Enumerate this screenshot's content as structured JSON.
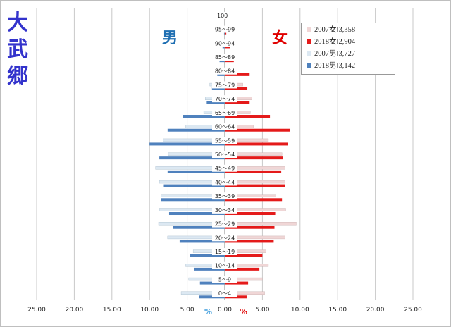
{
  "title_chars": [
    "大",
    "武",
    "郷"
  ],
  "male_label": "男",
  "female_label": "女",
  "percent_symbol": "%",
  "colors": {
    "female_2007": "#f0d6d6",
    "female_2018": "#e41a1a",
    "male_2007": "#dce8f2",
    "male_2018": "#4f81bd",
    "title": "#3333cc",
    "male_text": "#1f6fb2",
    "female_text": "#e00000"
  },
  "legend": [
    {
      "label": "2007女‖3,358",
      "color": "#f0d6d6"
    },
    {
      "label": "2018女‖2,904",
      "color": "#e41a1a"
    },
    {
      "label": "2007男‖3,727",
      "color": "#dce8f2"
    },
    {
      "label": "2018男‖3,142",
      "color": "#4f81bd"
    }
  ],
  "chart_data": {
    "type": "bar",
    "orientation": "horizontal-butterfly",
    "categories": [
      "0～4",
      "5～9",
      "10～14",
      "15～19",
      "20～24",
      "25～29",
      "30～34",
      "35～39",
      "40～44",
      "45～49",
      "50～54",
      "55～59",
      "60～64",
      "65～69",
      "70～74",
      "75～79",
      "80～84",
      "85～89",
      "90～94",
      "95～99",
      "100+"
    ],
    "visible_category_labels": [
      "0～4",
      "5～9",
      "10～14",
      "15～19",
      "20～24",
      "25～29",
      "30～34",
      "35～39",
      "40～44",
      "45～49",
      "50～54",
      "55～59",
      "60～64",
      "65～69",
      "70～74",
      "75～79",
      "80～84",
      "85～89",
      "90～94",
      "95～99",
      "100+"
    ],
    "series": [
      {
        "name": "2007女‖3,358",
        "side": "female",
        "values": [
          5.3,
          5.0,
          5.8,
          5.5,
          8.0,
          9.5,
          8.1,
          6.8,
          8.0,
          8.0,
          7.6,
          5.8,
          3.8,
          3.4,
          3.6,
          2.4,
          1.5,
          0.9,
          0.4,
          0.1,
          0.0
        ]
      },
      {
        "name": "2018女‖2,904",
        "side": "female",
        "values": [
          2.9,
          3.1,
          4.6,
          5.0,
          6.5,
          6.6,
          6.7,
          7.6,
          8.0,
          7.5,
          7.7,
          8.4,
          8.7,
          6.0,
          3.3,
          3.0,
          3.3,
          1.2,
          0.7,
          0.2,
          0.1
        ]
      },
      {
        "name": "2007男‖3,727",
        "side": "male",
        "values": [
          5.8,
          4.8,
          5.2,
          4.2,
          7.6,
          8.8,
          8.7,
          8.5,
          8.7,
          9.2,
          7.5,
          8.2,
          5.2,
          2.8,
          2.6,
          2.0,
          0.8,
          0.5,
          0.2,
          0.05,
          0.0
        ]
      },
      {
        "name": "2018男‖3,142",
        "side": "male",
        "values": [
          3.4,
          3.3,
          4.1,
          4.6,
          6.0,
          6.9,
          7.4,
          8.5,
          8.1,
          7.6,
          8.7,
          10.0,
          7.6,
          5.6,
          2.4,
          1.7,
          1.0,
          0.7,
          0.3,
          0.1,
          0.0
        ]
      }
    ],
    "x_ticks": [
      "25.00",
      "20.00",
      "15.00",
      "10.00",
      "5.00",
      "0.00",
      "5.00",
      "10.00",
      "15.00",
      "20.00",
      "25.00"
    ],
    "xlim": [
      -25,
      25
    ],
    "grid": true,
    "legend_position": "top-right"
  }
}
